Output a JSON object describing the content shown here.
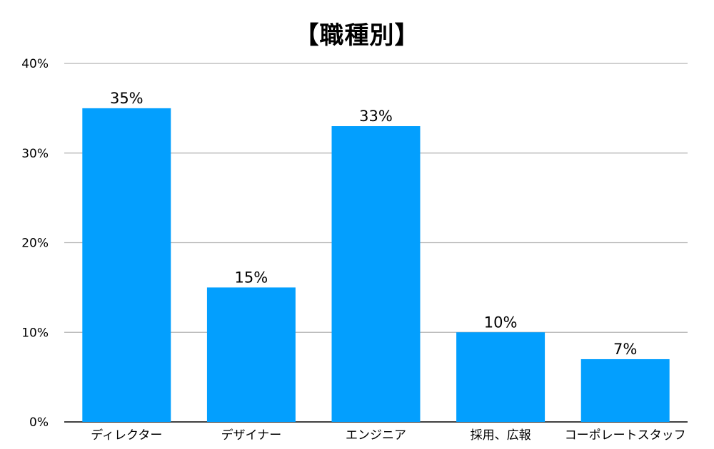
{
  "chart_data": {
    "type": "bar",
    "title": "【職種別】",
    "categories": [
      "ディレクター",
      "デザイナー",
      "エンジニア",
      "採用、広報",
      "コーポレートスタッフ"
    ],
    "values": [
      35,
      15,
      33,
      10,
      7
    ],
    "data_labels": [
      "35%",
      "15%",
      "33%",
      "10%",
      "7%"
    ],
    "y_ticks": [
      0,
      10,
      20,
      30,
      40
    ],
    "y_tick_labels": [
      "0%",
      "10%",
      "20%",
      "30%",
      "40%"
    ],
    "ylim": [
      0,
      40
    ],
    "grid": true,
    "legend": "none",
    "bar_color": "#039ffe"
  }
}
